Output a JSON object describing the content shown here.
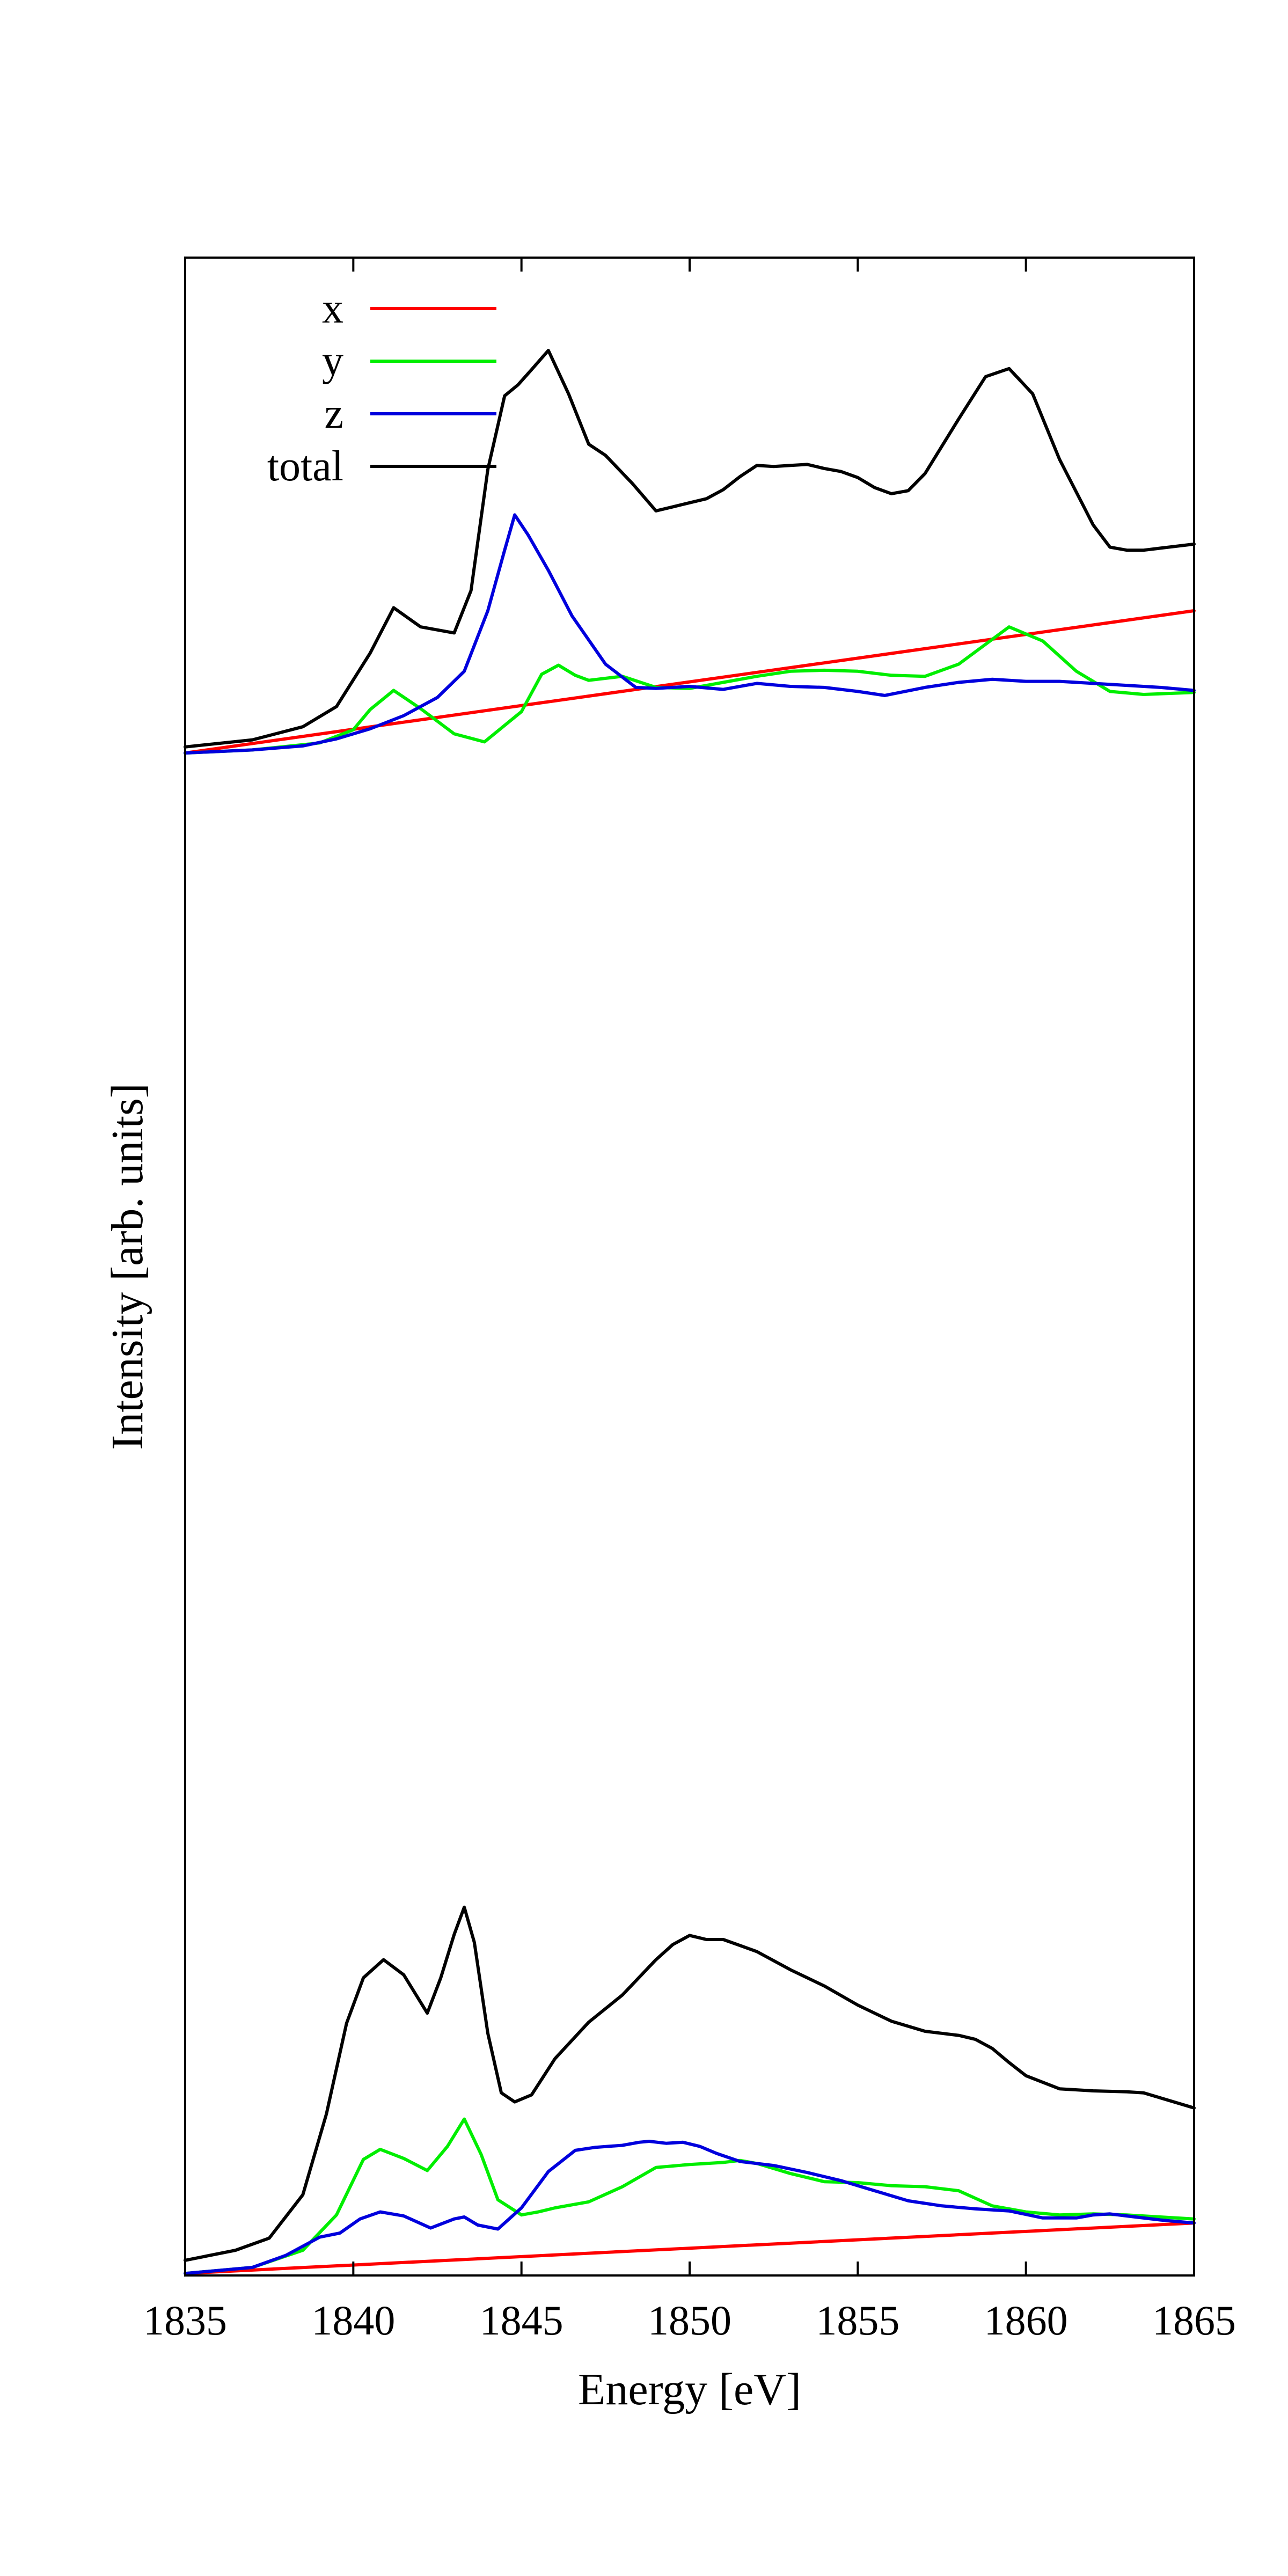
{
  "chart_data": {
    "type": "line",
    "xlabel": "Energy [eV]",
    "ylabel": "Intensity [arb. units]",
    "xlim": [
      1835,
      1865
    ],
    "ylim": [
      0,
      100
    ],
    "xticks": [
      1835,
      1840,
      1845,
      1850,
      1855,
      1860,
      1865
    ],
    "yticks": [],
    "grid": false,
    "legend": {
      "position": "top-left",
      "entries": [
        "x",
        "y",
        "z",
        "total"
      ]
    },
    "panels": [
      {
        "name": "upper",
        "series": [
          {
            "name": "x",
            "color": "#ff0000",
            "x": [
              1835,
              1865
            ],
            "y": [
              50.9,
              65.0
            ]
          },
          {
            "name": "y",
            "color": "#00ee00",
            "x": [
              1835,
              1837,
              1839,
              1840,
              1840.5,
              1841.2,
              1842,
              1843,
              1843.9,
              1845,
              1845.6,
              1846.1,
              1846.6,
              1847,
              1848,
              1849,
              1850,
              1851,
              1852,
              1853,
              1854,
              1855,
              1856,
              1857,
              1858,
              1859.5,
              1860.5,
              1861.5,
              1862.5,
              1863.5,
              1865
            ],
            "y": [
              50.9,
              51.2,
              51.9,
              53.2,
              55.2,
              57.1,
              55.3,
              52.8,
              52.0,
              55.0,
              58.7,
              59.6,
              58.6,
              58.1,
              58.5,
              57.4,
              57.3,
              57.9,
              58.5,
              59.0,
              59.1,
              59.0,
              58.6,
              58.5,
              59.7,
              63.4,
              62.0,
              59.0,
              57.0,
              56.7,
              56.9
            ]
          },
          {
            "name": "z",
            "color": "#0000dd",
            "x": [
              1835,
              1837,
              1838.5,
              1839.5,
              1840.5,
              1841.5,
              1842.5,
              1843.3,
              1844,
              1844.5,
              1844.8,
              1845.2,
              1845.8,
              1846.5,
              1847.5,
              1848.4,
              1849,
              1850,
              1851,
              1852,
              1853,
              1854,
              1855,
              1855.8,
              1857,
              1858,
              1859,
              1860,
              1861,
              1862,
              1863,
              1864,
              1865
            ],
            "y": [
              50.9,
              51.2,
              51.6,
              52.3,
              53.3,
              54.6,
              56.4,
              59.0,
              65.0,
              71.0,
              74.5,
              72.5,
              69.0,
              64.5,
              59.7,
              57.4,
              57.3,
              57.5,
              57.2,
              57.8,
              57.5,
              57.4,
              57.0,
              56.6,
              57.4,
              57.9,
              58.2,
              58.0,
              58.0,
              57.8,
              57.6,
              57.4,
              57.1
            ]
          },
          {
            "name": "total",
            "color": "#000000",
            "x": [
              1835,
              1837,
              1838.5,
              1839.5,
              1840.5,
              1841.2,
              1842,
              1843,
              1843.5,
              1844,
              1844.5,
              1844.9,
              1845.3,
              1845.8,
              1846.4,
              1847,
              1847.5,
              1848.3,
              1849,
              1849.5,
              1850,
              1850.5,
              1851,
              1851.5,
              1852,
              1852.5,
              1853,
              1853.5,
              1854,
              1854.5,
              1855,
              1855.5,
              1856,
              1856.5,
              1857,
              1858,
              1858.8,
              1859.5,
              1860.2,
              1861,
              1862,
              1862.5,
              1863,
              1863.5,
              1864,
              1865
            ],
            "y": [
              51.5,
              52.2,
              53.5,
              55.5,
              60.8,
              65.3,
              63.4,
              62.8,
              67.0,
              79.0,
              86.3,
              87.4,
              88.9,
              90.8,
              86.5,
              81.5,
              80.4,
              77.6,
              74.9,
              75.3,
              75.7,
              76.1,
              77.0,
              78.3,
              79.4,
              79.3,
              79.4,
              79.5,
              79.1,
              78.8,
              78.2,
              77.2,
              76.6,
              76.9,
              78.6,
              84.0,
              88.2,
              89.0,
              86.5,
              80.0,
              73.5,
              71.3,
              71.0,
              71.0,
              71.2,
              71.6
            ]
          }
        ]
      },
      {
        "name": "lower",
        "series": [
          {
            "name": "x",
            "color": "#ff0000",
            "x": [
              1835,
              1865
            ],
            "y": [
              0.2,
              5.2
            ]
          },
          {
            "name": "y",
            "color": "#00ee00",
            "x": [
              1835,
              1837,
              1838.5,
              1839.5,
              1840.3,
              1840.8,
              1841.5,
              1842.2,
              1842.8,
              1843.3,
              1843.8,
              1844.3,
              1845,
              1845.5,
              1846,
              1847,
              1848,
              1849,
              1850,
              1851,
              1851.5,
              1852,
              1853,
              1854,
              1855,
              1856,
              1857,
              1858,
              1859,
              1860,
              1861,
              1862,
              1863,
              1864,
              1865
            ],
            "y": [
              0.2,
              0.8,
              2.5,
              6.0,
              11.5,
              12.5,
              11.6,
              10.4,
              12.8,
              15.5,
              12.0,
              7.5,
              6.0,
              6.3,
              6.7,
              7.3,
              8.8,
              10.7,
              11.0,
              11.2,
              11.4,
              11.1,
              10.1,
              9.3,
              9.2,
              8.9,
              8.8,
              8.4,
              6.9,
              6.3,
              6.0,
              6.1,
              6.0,
              5.8,
              5.6
            ]
          },
          {
            "name": "z",
            "color": "#0000dd",
            "x": [
              1835,
              1837,
              1838,
              1839,
              1839.6,
              1840.2,
              1840.8,
              1841.5,
              1842.3,
              1843,
              1843.3,
              1843.7,
              1844.3,
              1845,
              1845.8,
              1846.6,
              1847.2,
              1848,
              1848.5,
              1848.8,
              1849.3,
              1849.8,
              1850.3,
              1850.8,
              1851.5,
              1852.5,
              1853.5,
              1854.5,
              1855.5,
              1856.5,
              1857.5,
              1858.5,
              1859.5,
              1860.5,
              1861.5,
              1862,
              1862.5,
              1863,
              1864,
              1865
            ],
            "y": [
              0.2,
              0.8,
              2.0,
              3.8,
              4.2,
              5.6,
              6.3,
              5.9,
              4.7,
              5.6,
              5.8,
              5.0,
              4.6,
              6.7,
              10.3,
              12.4,
              12.7,
              12.9,
              13.2,
              13.3,
              13.1,
              13.2,
              12.8,
              12.1,
              11.3,
              10.9,
              10.2,
              9.4,
              8.4,
              7.4,
              6.9,
              6.6,
              6.4,
              5.7,
              5.7,
              6.0,
              6.1,
              5.9,
              5.5,
              5.2
            ]
          },
          {
            "name": "total",
            "color": "#000000",
            "x": [
              1835,
              1836.5,
              1837.5,
              1838.5,
              1839.2,
              1839.8,
              1840.3,
              1840.9,
              1841.5,
              1842.2,
              1842.6,
              1843,
              1843.3,
              1843.6,
              1844,
              1844.4,
              1844.8,
              1845.3,
              1846,
              1847,
              1848,
              1849,
              1849.5,
              1850,
              1850.5,
              1851,
              1851.5,
              1852,
              1853,
              1854,
              1855,
              1856,
              1857,
              1857.5,
              1858,
              1858.5,
              1859,
              1859.5,
              1860,
              1861,
              1862,
              1863,
              1863.5,
              1864,
              1865
            ],
            "y": [
              1.5,
              2.5,
              3.7,
              8.0,
              16.0,
              25.0,
              29.5,
              31.3,
              29.8,
              26.0,
              29.5,
              33.8,
              36.5,
              33.0,
              24.0,
              18.1,
              17.2,
              17.9,
              21.5,
              25.1,
              27.8,
              31.3,
              32.8,
              33.7,
              33.3,
              33.3,
              32.7,
              32.1,
              30.3,
              28.7,
              26.8,
              25.2,
              24.2,
              24.0,
              23.8,
              23.4,
              22.5,
              21.1,
              19.8,
              18.5,
              18.3,
              18.2,
              18.1,
              17.6,
              16.6
            ]
          }
        ]
      }
    ]
  }
}
